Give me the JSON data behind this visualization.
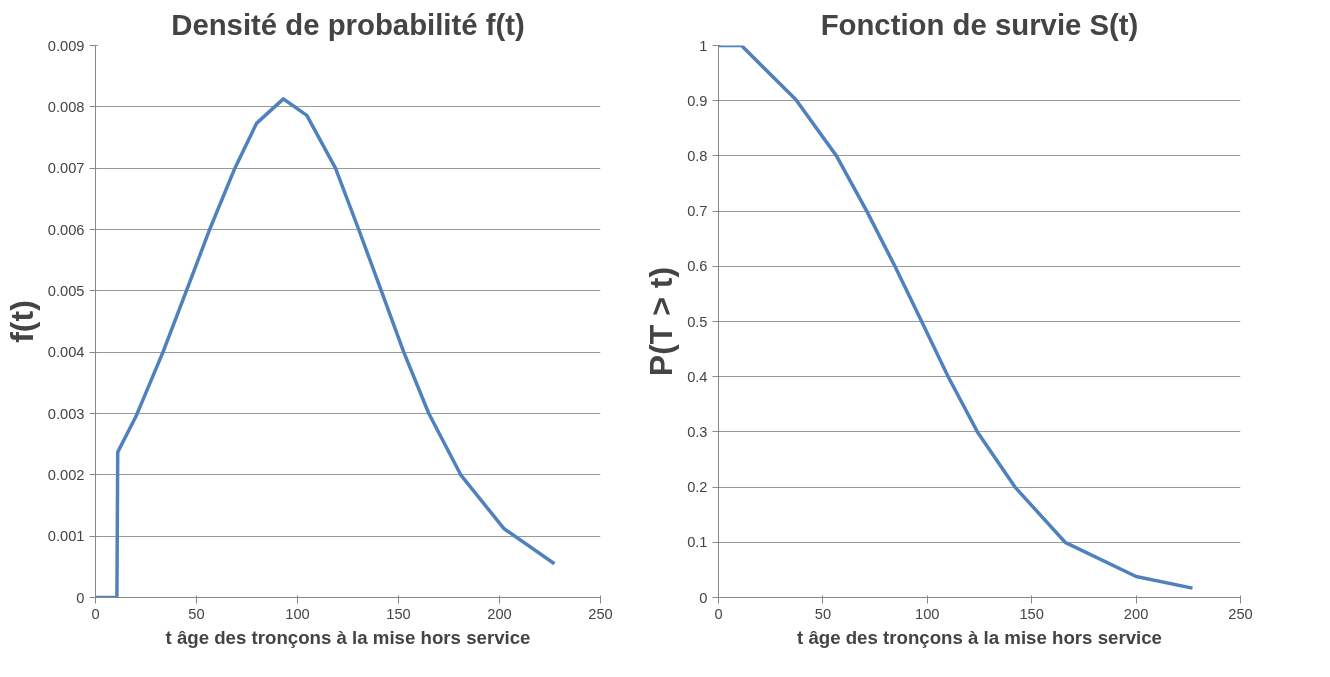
{
  "chart_data": [
    {
      "type": "line",
      "title": "Densité de probabilité f(t)",
      "xlabel": "t âge des tronçons à la mise hors service",
      "ylabel": "f(t)",
      "xlim": [
        0,
        250
      ],
      "xticks": [
        0,
        50,
        100,
        150,
        200,
        250
      ],
      "ylim": [
        0,
        0.009
      ],
      "yticks": [
        0,
        0.001,
        0.002,
        0.003,
        0.004,
        0.005,
        0.006,
        0.007,
        0.008,
        0.009
      ],
      "grid": "y",
      "marker": "none",
      "line_style": "solid",
      "series": [
        {
          "color": "#4f81bd",
          "x": [
            0,
            10.6,
            11,
            20,
            33.4,
            45,
            56.5,
            69,
            79.7,
            93,
            104.6,
            118.8,
            130.3,
            141.5,
            152.6,
            165,
            181,
            202.3,
            227.2
          ],
          "values": [
            0,
            0,
            0.00237,
            0.00295,
            0.004,
            0.005,
            0.006,
            0.007,
            0.00773,
            0.00813,
            0.00786,
            0.007,
            0.006,
            0.005,
            0.004,
            0.003,
            0.00199,
            0.00112,
            0.00055
          ]
        }
      ]
    },
    {
      "type": "line",
      "title": "Fonction de survie S(t)",
      "xlabel": "t âge des tronçons à la mise hors service",
      "ylabel": "P(T > t)",
      "xlim": [
        0,
        250
      ],
      "xticks": [
        0,
        50,
        100,
        150,
        200,
        250
      ],
      "ylim": [
        0,
        1
      ],
      "yticks": [
        0,
        0.1,
        0.2,
        0.3,
        0.4,
        0.5,
        0.6,
        0.7,
        0.8,
        0.9,
        1
      ],
      "grid": "y",
      "marker": "none",
      "line_style": "solid",
      "series": [
        {
          "color": "#4f81bd",
          "x": [
            0,
            11,
            37,
            56.5,
            71,
            84.5,
            97.3,
            110,
            124,
            142,
            166,
            200,
            227
          ],
          "values": [
            1,
            1,
            0.902,
            0.8,
            0.7,
            0.6,
            0.5,
            0.4,
            0.3,
            0.2,
            0.1,
            0.038,
            0.017
          ]
        }
      ]
    }
  ]
}
